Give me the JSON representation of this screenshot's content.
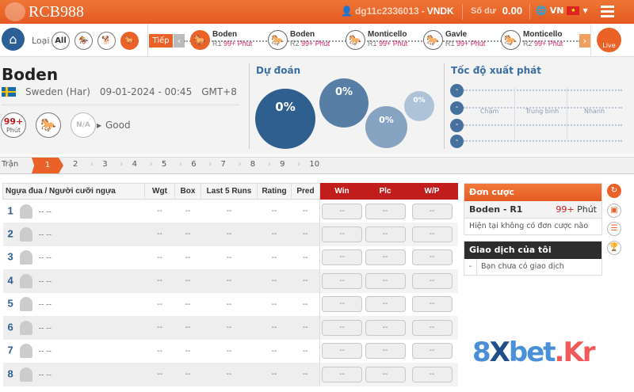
{
  "header": {
    "logo": "RCB988",
    "username": "dg11c2336013",
    "currency": "VNDK",
    "balance_label": "Số dư",
    "balance": "0.00",
    "language": "VN"
  },
  "nav": {
    "type_label": "Loại",
    "all_label": "All",
    "next_label": "Tiếp",
    "live_label": "Live",
    "races": [
      {
        "name": "Boden",
        "round": "R1",
        "time": "99+ Phút",
        "active": true
      },
      {
        "name": "Boden",
        "round": "R2",
        "time": "99+ Phút"
      },
      {
        "name": "Monticello",
        "round": "R1",
        "time": "99+ Phút"
      },
      {
        "name": "Gavle",
        "round": "R1",
        "time": "99+ Phút"
      },
      {
        "name": "Monticello",
        "round": "R2",
        "time": "99+ Phút"
      }
    ]
  },
  "race": {
    "title": "Boden",
    "country": "Sweden (Har)",
    "datetime": "09-01-2024 - 00:45",
    "timezone": "GMT+8",
    "minutes_top": "99+",
    "minutes_bottom": "Phút",
    "weather": "N/A",
    "track_condition": "Good"
  },
  "prediction": {
    "title": "Dự đoán",
    "bubbles": [
      "0%",
      "0%",
      "0%",
      "0%"
    ]
  },
  "start_speed": {
    "title": "Tốc độ xuất phát",
    "labels": [
      "Chậm",
      "Trung bình",
      "Nhanh"
    ],
    "rows": [
      "-",
      "-",
      "-",
      "-"
    ]
  },
  "tabs": {
    "label": "Trận",
    "items": [
      "1",
      "2",
      "3",
      "4",
      "5",
      "6",
      "7",
      "8",
      "9",
      "10"
    ],
    "active": "1"
  },
  "table": {
    "headers": [
      "Ngựa đua / Người cưỡi ngựa",
      "Wgt",
      "Box",
      "Last 5 Runs",
      "Rating",
      "Pred",
      "Win",
      "Plc",
      "W/P"
    ],
    "rows": [
      {
        "no": "1"
      },
      {
        "no": "2"
      },
      {
        "no": "3"
      },
      {
        "no": "4"
      },
      {
        "no": "5"
      },
      {
        "no": "6"
      },
      {
        "no": "7"
      },
      {
        "no": "8"
      }
    ],
    "empty": "--",
    "name_empty": "-- --"
  },
  "betslip": {
    "title": "Đơn cược",
    "race": "Boden - R1",
    "time_hi": "99+",
    "time_unit": "Phút",
    "empty": "Hiện tại không có đơn cược nào"
  },
  "transactions": {
    "title": "Giao dịch của tôi",
    "dash": "-",
    "empty": "Bạn chưa có giao dịch"
  },
  "watermark": {
    "a": "8",
    "b": "X",
    "c": "bet",
    "d": ".Kr"
  },
  "colors": {
    "brand": "#ea6228",
    "accent_blue": "#2c5f95",
    "odds_header": "#c21d1d"
  }
}
